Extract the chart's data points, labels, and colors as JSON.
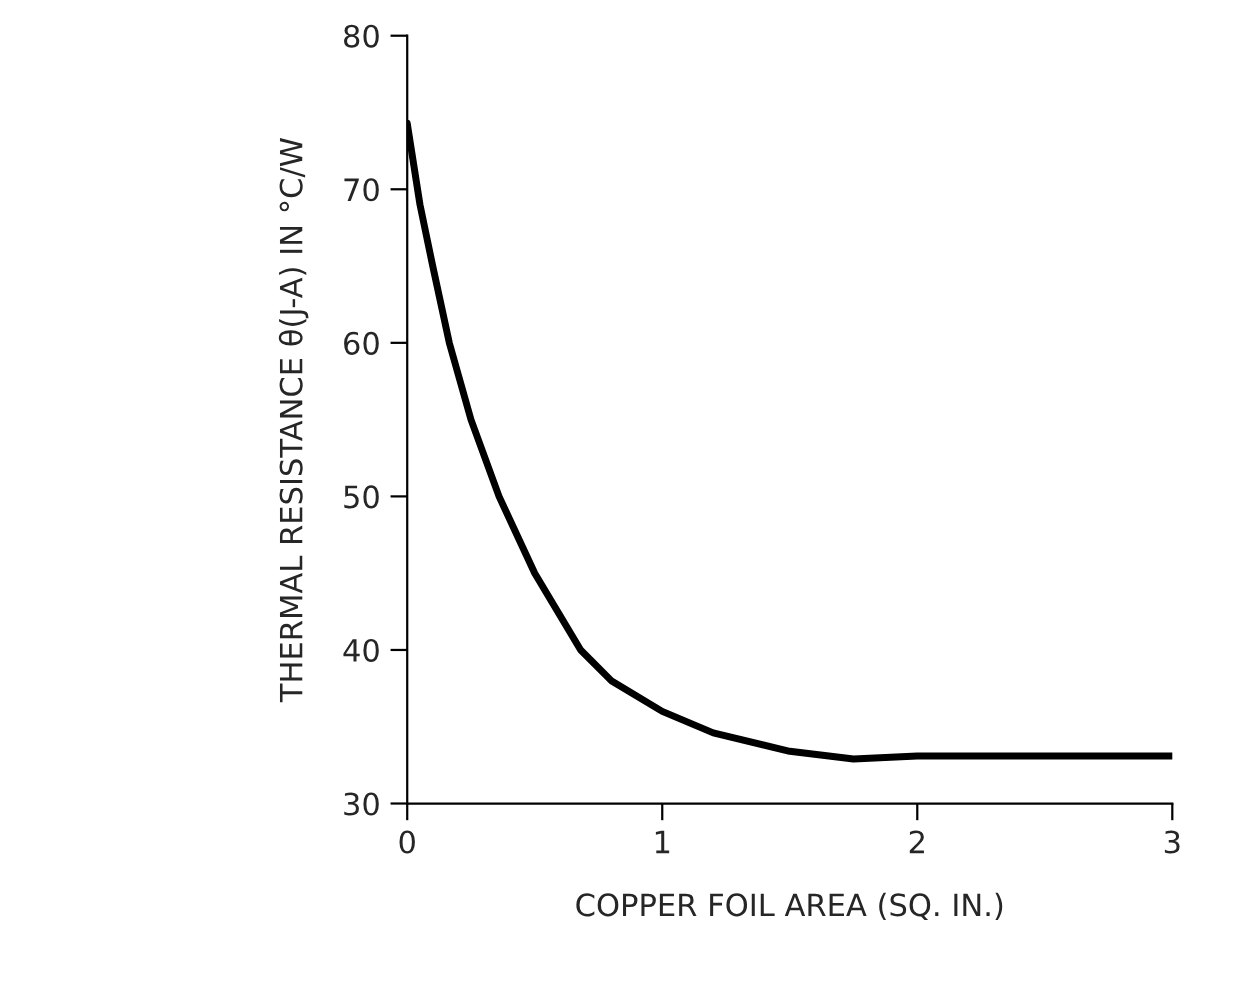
{
  "chart_data": {
    "type": "line",
    "xlabel": "COPPER FOIL AREA (SQ. IN.)",
    "ylabel": "THERMAL RESISTANCE θ(J-A) IN °C/W",
    "x": [
      0,
      0.05,
      0.1,
      0.165,
      0.25,
      0.36,
      0.5,
      0.68,
      0.8,
      1.0,
      1.2,
      1.5,
      1.75,
      2.0,
      2.5,
      3.0
    ],
    "series": [
      {
        "color": "#000000",
        "values": [
          74.3,
          69,
          65,
          60,
          55,
          50,
          45,
          40,
          38,
          36,
          34.6,
          33.4,
          32.9,
          33.1,
          33.1,
          33.1
        ]
      }
    ],
    "xlim": [
      0,
      3
    ],
    "xticks": [
      0,
      1,
      2,
      3
    ],
    "ylim": [
      30,
      80
    ],
    "yticks": [
      30,
      40,
      50,
      60,
      70,
      80
    ],
    "grid": false,
    "legend": false,
    "marker": "none",
    "line_style": "solid"
  }
}
